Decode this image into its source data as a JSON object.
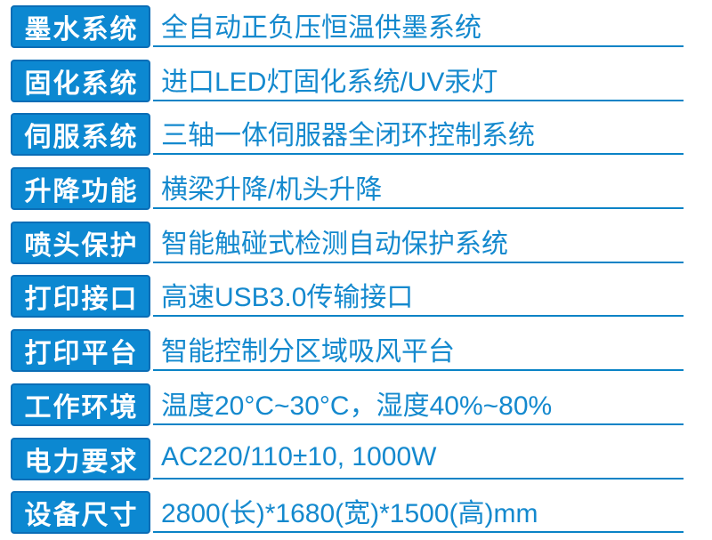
{
  "table": {
    "rows": [
      {
        "label": "墨水系统",
        "value": "全自动正负压恒温供墨系统"
      },
      {
        "label": "固化系统",
        "value": "进口LED灯固化系统/UV汞灯"
      },
      {
        "label": "伺服系统",
        "value": "三轴一体伺服器全闭环控制系统"
      },
      {
        "label": "升降功能",
        "value": "横梁升降/机头升降"
      },
      {
        "label": "喷头保护",
        "value": "智能触碰式检测自动保护系统"
      },
      {
        "label": "打印接口",
        "value": "高速USB3.0传输接口"
      },
      {
        "label": "打印平台",
        "value": "智能控制分区域吸风平台"
      },
      {
        "label": "工作环境",
        "value": "温度20°C~30°C，湿度40%~80%"
      },
      {
        "label": "电力要求",
        "value": "AC220/110±10, 1000W"
      },
      {
        "label": "设备尺寸",
        "value": "2800(长)*1680(宽)*1500(高)mm"
      }
    ],
    "colors": {
      "label_bg": "#0c88d1",
      "label_border": "#0a6db6",
      "label_text": "#ffffff",
      "value_text": "#1489ce",
      "line": "#0a83c6",
      "background": "#ffffff"
    }
  }
}
